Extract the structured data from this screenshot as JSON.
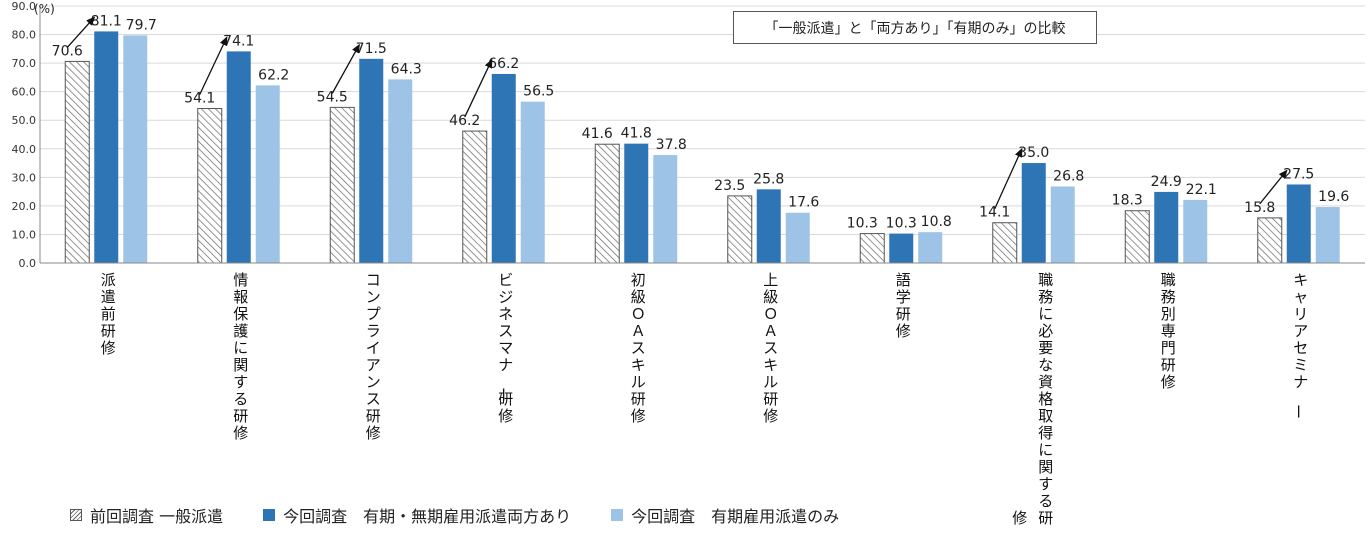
{
  "chart_data": {
    "type": "bar",
    "unit_label": "(%)",
    "ylim": [
      0,
      90
    ],
    "y_ticks": [
      "0.0",
      "10.0",
      "20.0",
      "30.0",
      "40.0",
      "50.0",
      "60.0",
      "70.0",
      "80.0",
      "90.0"
    ],
    "categories": [
      "派遣前研修",
      "情報保護に関する研修",
      "コンプライアンス研修",
      "ビジネスマナー研修",
      "初級ＯＡスキル研修",
      "上級ＯＡスキル研修",
      "語学研修",
      "職務に必要な資格取得に関する研修",
      "職務別専門研修",
      "キャリアセミナー"
    ],
    "series": [
      {
        "name": "前回調査 一般派遣",
        "values": [
          70.6,
          54.1,
          54.5,
          46.2,
          41.6,
          23.5,
          10.3,
          14.1,
          18.3,
          15.8
        ]
      },
      {
        "name": "今回調査　有期・無期雇用派遣両方あり",
        "values": [
          81.1,
          74.1,
          71.5,
          66.2,
          41.8,
          25.8,
          10.3,
          35.0,
          24.9,
          27.5
        ]
      },
      {
        "name": "今回調査　有期雇用派遣のみ",
        "values": [
          79.7,
          62.2,
          64.3,
          56.5,
          37.8,
          17.6,
          10.8,
          26.8,
          22.1,
          19.6
        ]
      }
    ],
    "arrow_categories": [
      0,
      1,
      2,
      3,
      7,
      9
    ],
    "annotation": "「一般派遣」と「両方あり」「有期のみ」の比較",
    "colors": {
      "prev": "#ffffff",
      "both": "#2e75b6",
      "only": "#9dc3e6"
    },
    "grid": true,
    "legend_position": "bottom"
  }
}
